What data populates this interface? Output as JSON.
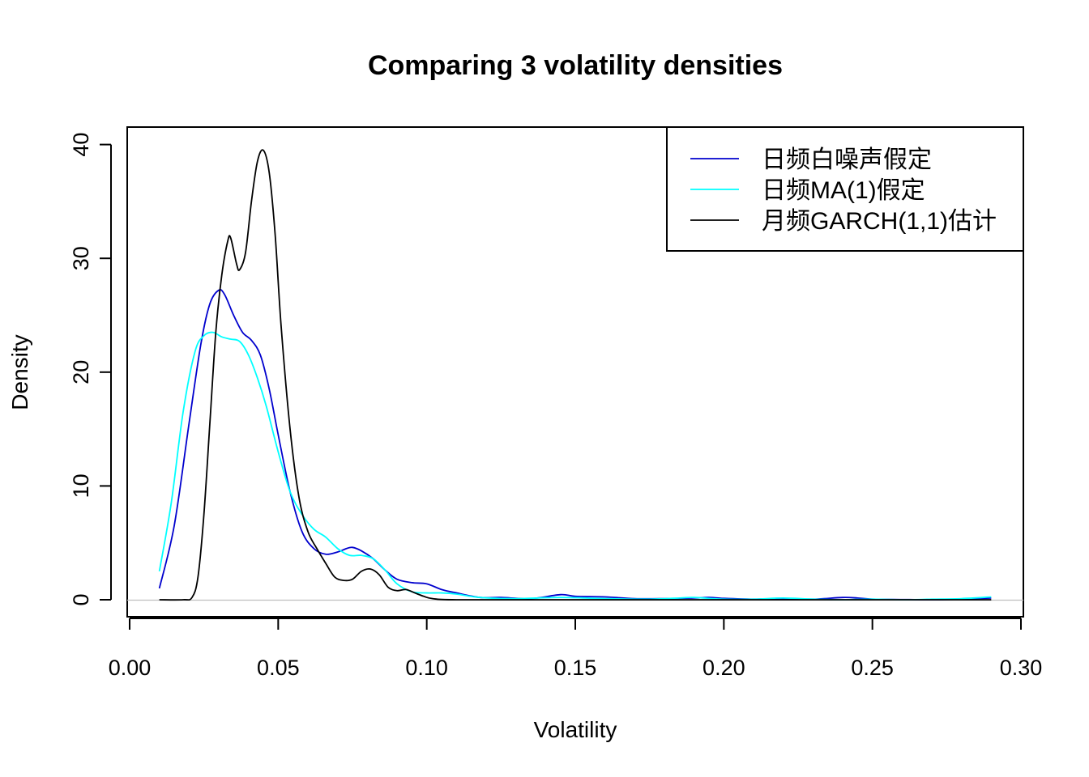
{
  "chart_data": {
    "type": "line",
    "title": "Comparing 3 volatility densities",
    "xlabel": "Volatility",
    "ylabel": "Density",
    "xlim": [
      0.0,
      0.3
    ],
    "ylim": [
      0,
      42
    ],
    "x_ticks": [
      "0.00",
      "0.05",
      "0.10",
      "0.15",
      "0.20",
      "0.25",
      "0.30"
    ],
    "y_ticks": [
      "0",
      "10",
      "20",
      "30",
      "40"
    ],
    "x_tick_values": [
      0.0,
      0.05,
      0.1,
      0.15,
      0.2,
      0.25,
      0.3
    ],
    "y_tick_values": [
      0,
      10,
      20,
      30,
      40
    ],
    "grid": false,
    "legend_position": "top-right",
    "baseline": 0,
    "series": [
      {
        "name": "日频白噪声假定",
        "color": "#0000CD",
        "x": [
          0.01,
          0.015,
          0.02,
          0.024,
          0.027,
          0.03,
          0.032,
          0.035,
          0.038,
          0.041,
          0.044,
          0.047,
          0.05,
          0.054,
          0.058,
          0.062,
          0.066,
          0.07,
          0.073,
          0.075,
          0.078,
          0.082,
          0.086,
          0.09,
          0.095,
          0.1,
          0.105,
          0.11,
          0.118,
          0.125,
          0.135,
          0.145,
          0.15,
          0.16,
          0.17,
          0.18,
          0.19,
          0.195,
          0.2,
          0.21,
          0.22,
          0.23,
          0.24,
          0.245,
          0.25,
          0.26,
          0.27,
          0.28,
          0.29
        ],
        "y": [
          1.0,
          6.5,
          15.5,
          22.5,
          26.0,
          27.2,
          26.8,
          25.0,
          23.5,
          22.8,
          21.5,
          18.5,
          14.5,
          9.5,
          6.0,
          4.5,
          4.0,
          4.2,
          4.5,
          4.6,
          4.3,
          3.6,
          2.6,
          1.8,
          1.5,
          1.4,
          0.9,
          0.6,
          0.2,
          0.2,
          0.1,
          0.45,
          0.3,
          0.25,
          0.1,
          0.1,
          0.15,
          0.2,
          0.12,
          0.05,
          0.1,
          0.05,
          0.2,
          0.15,
          0.05,
          0.02,
          0.0,
          0.05,
          0.15
        ]
      },
      {
        "name": "日频MA(1)假定",
        "color": "#00FFFF",
        "x": [
          0.01,
          0.014,
          0.018,
          0.022,
          0.025,
          0.028,
          0.031,
          0.034,
          0.037,
          0.04,
          0.043,
          0.046,
          0.05,
          0.054,
          0.058,
          0.062,
          0.066,
          0.07,
          0.074,
          0.078,
          0.082,
          0.086,
          0.09,
          0.095,
          0.1,
          0.105,
          0.11,
          0.118,
          0.13,
          0.145,
          0.16,
          0.175,
          0.185,
          0.19,
          0.2,
          0.21,
          0.22,
          0.23,
          0.24,
          0.25,
          0.26,
          0.27,
          0.28,
          0.29
        ],
        "y": [
          2.5,
          8.5,
          16.5,
          21.8,
          23.2,
          23.5,
          23.1,
          22.9,
          22.7,
          21.5,
          19.5,
          17.0,
          13.0,
          9.5,
          7.5,
          6.2,
          5.5,
          4.5,
          3.9,
          3.9,
          3.6,
          2.6,
          1.4,
          0.7,
          0.6,
          0.6,
          0.5,
          0.2,
          0.1,
          0.2,
          0.1,
          0.05,
          0.15,
          0.2,
          0.05,
          0.05,
          0.15,
          0.05,
          0.0,
          0.05,
          0.0,
          0.05,
          0.1,
          0.25
        ]
      },
      {
        "name": "月频GARCH(1,1)估计",
        "color": "#000000",
        "x": [
          0.01,
          0.018,
          0.021,
          0.023,
          0.025,
          0.027,
          0.029,
          0.031,
          0.033,
          0.034,
          0.036,
          0.037,
          0.039,
          0.041,
          0.043,
          0.045,
          0.047,
          0.049,
          0.051,
          0.054,
          0.057,
          0.06,
          0.063,
          0.066,
          0.069,
          0.072,
          0.075,
          0.078,
          0.081,
          0.084,
          0.087,
          0.09,
          0.093,
          0.096,
          0.099,
          0.102,
          0.11,
          0.15,
          0.2,
          0.25,
          0.29
        ],
        "y": [
          0.0,
          0.0,
          0.2,
          2.0,
          7.5,
          15.5,
          23.5,
          28.5,
          31.5,
          31.8,
          29.5,
          29.0,
          30.5,
          35.0,
          38.5,
          39.5,
          37.5,
          32.0,
          24.0,
          15.0,
          9.0,
          6.0,
          4.5,
          3.2,
          2.0,
          1.7,
          1.8,
          2.5,
          2.7,
          2.2,
          1.1,
          0.8,
          0.9,
          0.6,
          0.3,
          0.1,
          0.0,
          0.0,
          0.0,
          0.0,
          0.0
        ]
      }
    ]
  }
}
